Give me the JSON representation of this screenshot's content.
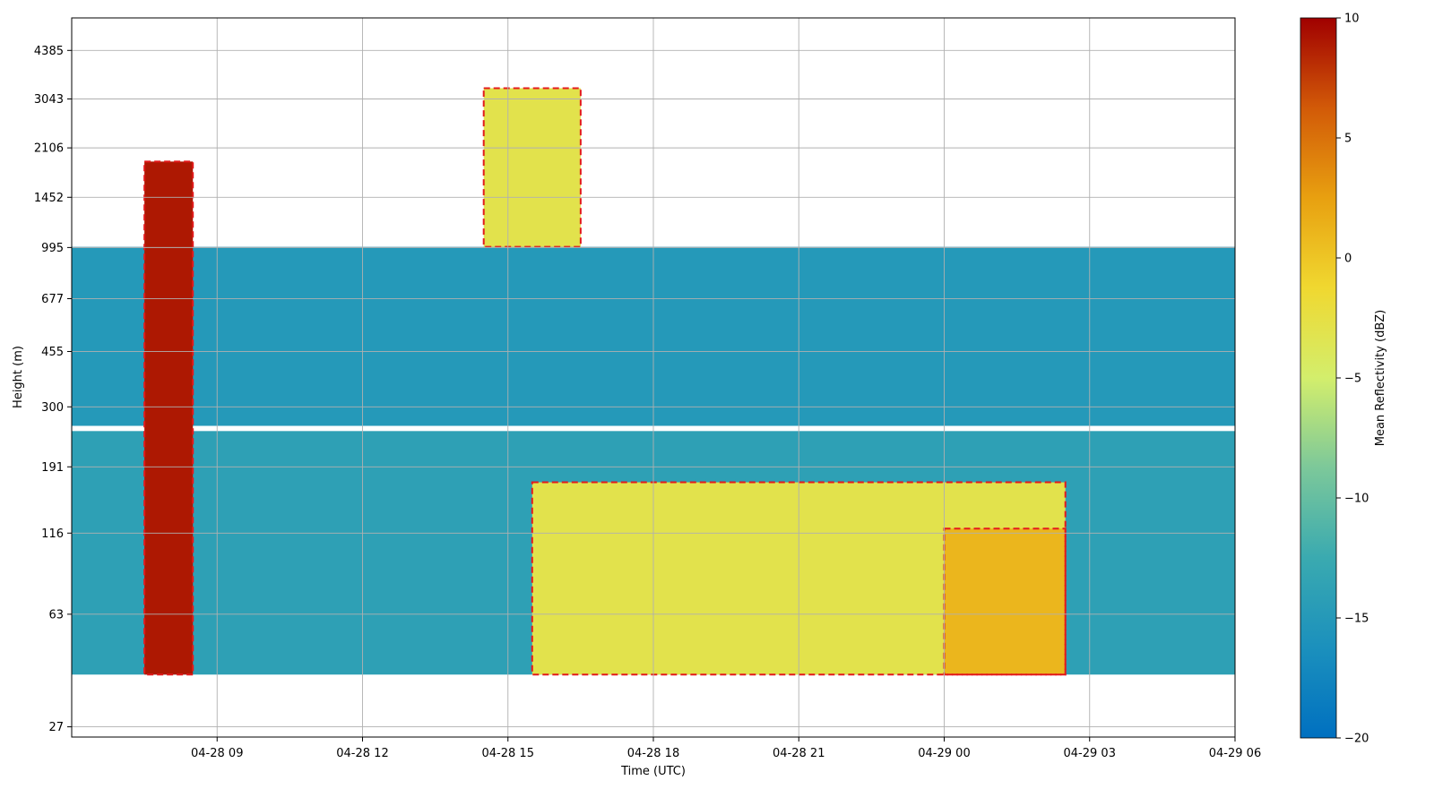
{
  "chart_data": {
    "type": "heatmap",
    "title": "",
    "xlabel": "Time (UTC)",
    "ylabel": "Height (m)",
    "x_tick_labels": [
      "04-28 09",
      "04-28 12",
      "04-28 15",
      "04-28 18",
      "04-28 21",
      "04-29 00",
      "04-29 03",
      "04-29 06"
    ],
    "y_tick_labels": [
      "27",
      "63",
      "116",
      "191",
      "300",
      "455",
      "677",
      "995",
      "1452",
      "2106",
      "3043",
      "4385"
    ],
    "y_scale": "log",
    "grid": true,
    "colorbar": {
      "label": "Mean Reflectivity (dBZ)",
      "range": [
        -20,
        10
      ],
      "tick_labels": [
        "10",
        "5",
        "0",
        "−5",
        "−10",
        "−15",
        "−20"
      ],
      "colors": [
        "#0070c0",
        "#1b90bd",
        "#3aaab0",
        "#7cc89a",
        "#d3ee6c",
        "#f0d830",
        "#e8a010",
        "#d25a08",
        "#a00000"
      ]
    },
    "contour": {
      "style": "dashed",
      "color": "#e31a1c"
    },
    "regions": [
      {
        "name": "low-level layer",
        "start": "04-28 06",
        "end": "04-29 06",
        "bottom_m": 40,
        "top_m": 250,
        "dbz": -14
      },
      {
        "name": "mid-level layer",
        "start": "04-28 06",
        "end": "04-29 06",
        "bottom_m": 260,
        "top_m": 1000,
        "dbz": -15
      },
      {
        "name": "evening surface band",
        "start": "04-28 15:30",
        "end": "04-29 02:30",
        "bottom_m": 40,
        "top_m": 170,
        "dbz": -3
      },
      {
        "name": "night surface maximum",
        "start": "04-29 00",
        "end": "04-29 02:30",
        "bottom_m": 40,
        "top_m": 120,
        "dbz": 1
      },
      {
        "name": "precipitation column",
        "start": "04-28 07:30",
        "end": "04-28 08:30",
        "bottom_m": 40,
        "top_m": 1900,
        "dbz": 9
      },
      {
        "name": "afternoon cloud",
        "start": "04-28 14:30",
        "end": "04-28 16:30",
        "bottom_m": 1000,
        "top_m": 3300,
        "dbz": -3
      }
    ]
  }
}
